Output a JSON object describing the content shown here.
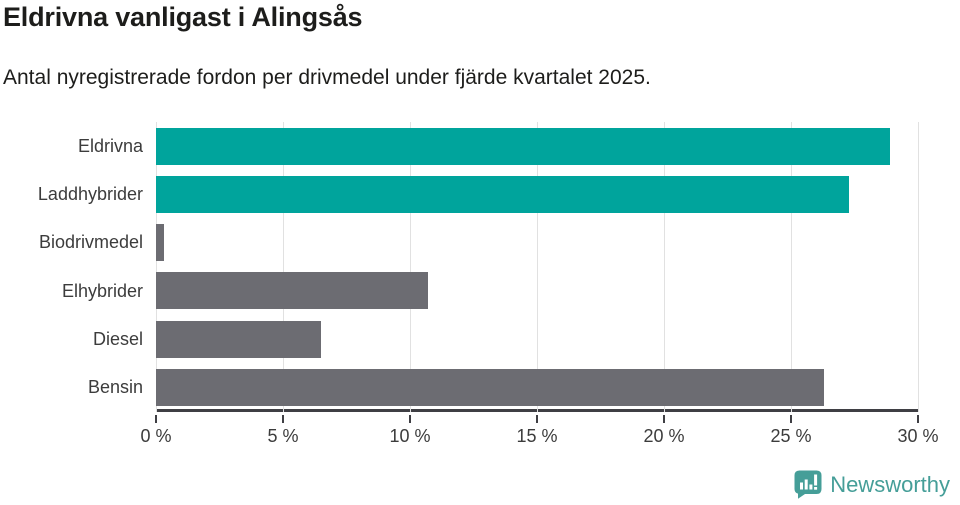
{
  "header": {
    "title": "Eldrivna vanligast i Alingsås",
    "subtitle": "Antal nyregistrerade fordon per drivmedel under fjärde kvartalet 2025."
  },
  "chart_data": {
    "type": "bar",
    "orientation": "horizontal",
    "title": "Eldrivna vanligast i Alingsås",
    "subtitle": "Antal nyregistrerade fordon per drivmedel under fjärde kvartalet 2025.",
    "categories": [
      "Eldrivna",
      "Laddhybrider",
      "Biodrivmedel",
      "Elhybrider",
      "Diesel",
      "Bensin"
    ],
    "values": [
      28.9,
      27.3,
      0.3,
      10.7,
      6.5,
      26.3
    ],
    "unit": "%",
    "xlim": [
      0,
      30
    ],
    "x_ticks": [
      0,
      5,
      10,
      15,
      20,
      25,
      30
    ],
    "x_tick_labels": [
      "0 %",
      "5 %",
      "10 %",
      "15 %",
      "20 %",
      "25 %",
      "30 %"
    ],
    "bar_colors": [
      "#00a49c",
      "#00a49c",
      "#6c6c72",
      "#6c6c72",
      "#6c6c72",
      "#6c6c72"
    ],
    "highlight_color": "#00a49c",
    "default_color": "#6c6c72",
    "grid": true,
    "legend": false
  },
  "colors": {
    "teal": "#00a49c",
    "gray": "#6c6c72",
    "gridline": "#e1e1e1",
    "axis": "#3f3f44",
    "text_dark": "#1d1d1b",
    "text_label": "#3c3c3c",
    "logo": "#459e98"
  },
  "branding": {
    "logo_text": "Newsworthy"
  }
}
